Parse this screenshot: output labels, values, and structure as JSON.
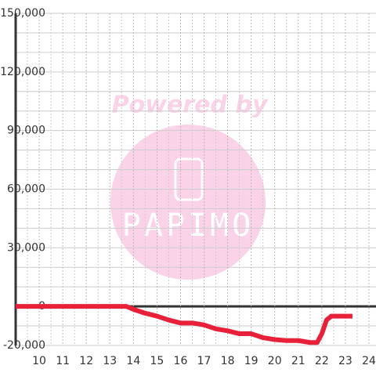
{
  "chart_data": {
    "type": "line",
    "x": [
      9,
      13,
      13.7,
      14,
      14.5,
      15,
      15.5,
      16,
      16.5,
      17,
      17.5,
      18,
      18.5,
      19,
      19.5,
      20,
      20.5,
      21,
      21.5,
      21.8,
      22,
      22.2,
      22.4,
      23.3
    ],
    "series": [
      {
        "color": "#e8203a",
        "values": [
          0,
          0,
          0,
          -1500,
          -3500,
          -5000,
          -7000,
          -8500,
          -8500,
          -9500,
          -11500,
          -12500,
          -14000,
          -14000,
          -16000,
          -17000,
          -17500,
          -17500,
          -18500,
          -18500,
          -14000,
          -7000,
          -5000,
          -5000
        ]
      }
    ],
    "xlim": [
      9,
      24.3
    ],
    "ylim": [
      -20000,
      150000
    ],
    "xticks": [
      10,
      11,
      12,
      13,
      14,
      15,
      16,
      17,
      18,
      19,
      20,
      21,
      22,
      23,
      24
    ],
    "minor_xticks": [
      9.5,
      10.5,
      11.5,
      12.5,
      13.5,
      14.5,
      15.5,
      16.5,
      17.5,
      18.5,
      19.5,
      20.5,
      21.5,
      22.5,
      23.5
    ],
    "yticks": [
      {
        "value": -20000,
        "label": "-20,000"
      },
      0,
      {
        "value": 30000,
        "label": "30,000"
      },
      {
        "value": 60000,
        "label": "60,000"
      },
      {
        "value": 90000,
        "label": "90,000"
      },
      {
        "value": 120000,
        "label": "120,000"
      },
      {
        "value": 150000,
        "label": "150,000"
      }
    ],
    "minor_yticks": [
      -10000,
      10000,
      20000,
      40000,
      50000,
      70000,
      80000,
      100000,
      110000,
      130000,
      140000
    ],
    "grid": true,
    "watermark": {
      "top": "Powered by",
      "logo": "PAPIMO"
    }
  }
}
